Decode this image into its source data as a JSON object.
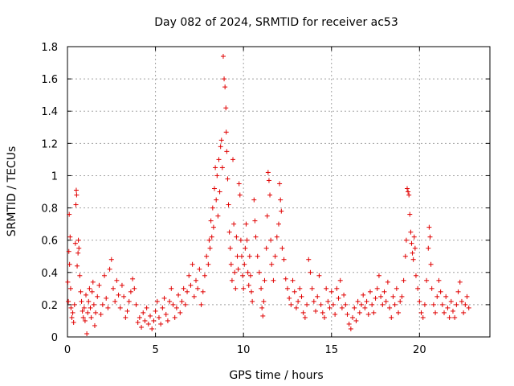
{
  "chart_data": {
    "type": "scatter",
    "title": "Day 082 of 2024, SRMTID for receiver ac53",
    "xlabel": "GPS time / hours",
    "ylabel": "SRMTID / TECUs",
    "xlim": [
      0,
      24
    ],
    "ylim": [
      0,
      1.8
    ],
    "xticks": [
      0,
      5,
      10,
      15,
      20
    ],
    "xtick_labels": [
      "0",
      "5",
      "10",
      "15",
      "20"
    ],
    "yticks": [
      0,
      0.2,
      0.4,
      0.6,
      0.8,
      1.0,
      1.2,
      1.4,
      1.6,
      1.8
    ],
    "ytick_labels": [
      "0",
      "0.2",
      "0.4",
      "0.6",
      "0.8",
      "1",
      "1.2",
      "1.4",
      "1.6",
      "1.8"
    ],
    "grid": true,
    "marker": "+",
    "color": "#e00000",
    "series": [
      {
        "name": "ac53",
        "points": [
          [
            0.02,
            0.34
          ],
          [
            0.05,
            0.22
          ],
          [
            0.08,
            0.53
          ],
          [
            0.1,
            0.76
          ],
          [
            0.12,
            0.45
          ],
          [
            0.15,
            0.62
          ],
          [
            0.18,
            0.3
          ],
          [
            0.2,
            0.18
          ],
          [
            0.25,
            0.12
          ],
          [
            0.3,
            0.15
          ],
          [
            0.35,
            0.09
          ],
          [
            0.4,
            0.2
          ],
          [
            0.45,
            0.58
          ],
          [
            0.48,
            0.82
          ],
          [
            0.5,
            0.91
          ],
          [
            0.52,
            0.88
          ],
          [
            0.55,
            0.44
          ],
          [
            0.6,
            0.52
          ],
          [
            0.62,
            0.6
          ],
          [
            0.65,
            0.55
          ],
          [
            0.7,
            0.38
          ],
          [
            0.75,
            0.28
          ],
          [
            0.8,
            0.22
          ],
          [
            0.85,
            0.16
          ],
          [
            0.9,
            0.12
          ],
          [
            0.95,
            0.18
          ],
          [
            1.0,
            0.1
          ],
          [
            1.05,
            0.26
          ],
          [
            1.1,
            0.02
          ],
          [
            1.15,
            0.15
          ],
          [
            1.2,
            0.22
          ],
          [
            1.25,
            0.3
          ],
          [
            1.3,
            0.18
          ],
          [
            1.35,
            0.12
          ],
          [
            1.4,
            0.28
          ],
          [
            1.45,
            0.34
          ],
          [
            1.5,
            0.2
          ],
          [
            1.55,
            0.07
          ],
          [
            1.6,
            0.15
          ],
          [
            1.7,
            0.25
          ],
          [
            1.8,
            0.32
          ],
          [
            1.9,
            0.14
          ],
          [
            2.0,
            0.2
          ],
          [
            2.1,
            0.38
          ],
          [
            2.2,
            0.24
          ],
          [
            2.3,
            0.18
          ],
          [
            2.4,
            0.42
          ],
          [
            2.5,
            0.48
          ],
          [
            2.6,
            0.3
          ],
          [
            2.7,
            0.22
          ],
          [
            2.8,
            0.35
          ],
          [
            2.9,
            0.26
          ],
          [
            3.0,
            0.18
          ],
          [
            3.1,
            0.32
          ],
          [
            3.2,
            0.25
          ],
          [
            3.3,
            0.12
          ],
          [
            3.4,
            0.16
          ],
          [
            3.5,
            0.22
          ],
          [
            3.6,
            0.28
          ],
          [
            3.7,
            0.36
          ],
          [
            3.8,
            0.3
          ],
          [
            3.9,
            0.2
          ],
          [
            4.0,
            0.09
          ],
          [
            4.1,
            0.12
          ],
          [
            4.2,
            0.06
          ],
          [
            4.3,
            0.15
          ],
          [
            4.4,
            0.1
          ],
          [
            4.5,
            0.18
          ],
          [
            4.6,
            0.08
          ],
          [
            4.7,
            0.13
          ],
          [
            4.8,
            0.05
          ],
          [
            4.9,
            0.1
          ],
          [
            5.0,
            0.16
          ],
          [
            5.1,
            0.22
          ],
          [
            5.2,
            0.12
          ],
          [
            5.3,
            0.08
          ],
          [
            5.4,
            0.18
          ],
          [
            5.5,
            0.24
          ],
          [
            5.6,
            0.14
          ],
          [
            5.7,
            0.1
          ],
          [
            5.8,
            0.22
          ],
          [
            5.9,
            0.3
          ],
          [
            6.0,
            0.2
          ],
          [
            6.1,
            0.12
          ],
          [
            6.2,
            0.18
          ],
          [
            6.3,
            0.26
          ],
          [
            6.4,
            0.15
          ],
          [
            6.5,
            0.22
          ],
          [
            6.6,
            0.3
          ],
          [
            6.7,
            0.2
          ],
          [
            6.8,
            0.28
          ],
          [
            6.9,
            0.38
          ],
          [
            7.0,
            0.32
          ],
          [
            7.1,
            0.45
          ],
          [
            7.2,
            0.25
          ],
          [
            7.3,
            0.35
          ],
          [
            7.4,
            0.3
          ],
          [
            7.5,
            0.42
          ],
          [
            7.6,
            0.2
          ],
          [
            7.7,
            0.28
          ],
          [
            7.8,
            0.38
          ],
          [
            7.9,
            0.5
          ],
          [
            8.0,
            0.45
          ],
          [
            8.05,
            0.6
          ],
          [
            8.1,
            0.55
          ],
          [
            8.15,
            0.72
          ],
          [
            8.2,
            0.62
          ],
          [
            8.25,
            0.8
          ],
          [
            8.3,
            0.68
          ],
          [
            8.35,
            0.92
          ],
          [
            8.4,
            1.05
          ],
          [
            8.45,
            0.85
          ],
          [
            8.5,
            1.0
          ],
          [
            8.55,
            0.75
          ],
          [
            8.6,
            1.1
          ],
          [
            8.65,
            0.9
          ],
          [
            8.7,
            1.18
          ],
          [
            8.75,
            1.22
          ],
          [
            8.8,
            1.05
          ],
          [
            8.85,
            1.74
          ],
          [
            8.9,
            1.6
          ],
          [
            8.95,
            1.55
          ],
          [
            9.0,
            1.42
          ],
          [
            9.02,
            1.27
          ],
          [
            9.05,
            1.15
          ],
          [
            9.1,
            0.98
          ],
          [
            9.15,
            0.82
          ],
          [
            9.2,
            0.65
          ],
          [
            9.25,
            0.55
          ],
          [
            9.3,
            0.45
          ],
          [
            9.35,
            0.35
          ],
          [
            9.4,
            1.1
          ],
          [
            9.45,
            0.7
          ],
          [
            9.5,
            0.4
          ],
          [
            9.55,
            0.3
          ],
          [
            9.6,
            0.62
          ],
          [
            9.65,
            0.5
          ],
          [
            9.7,
            0.42
          ],
          [
            9.75,
            0.95
          ],
          [
            9.8,
            0.88
          ],
          [
            9.85,
            0.6
          ],
          [
            9.9,
            0.5
          ],
          [
            9.95,
            0.38
          ],
          [
            10.0,
            0.3
          ],
          [
            10.05,
            0.45
          ],
          [
            10.1,
            0.55
          ],
          [
            10.15,
            0.7
          ],
          [
            10.2,
            0.6
          ],
          [
            10.25,
            0.4
          ],
          [
            10.3,
            0.32
          ],
          [
            10.35,
            0.5
          ],
          [
            10.4,
            0.38
          ],
          [
            10.45,
            0.28
          ],
          [
            10.5,
            0.22
          ],
          [
            10.6,
            0.85
          ],
          [
            10.65,
            0.72
          ],
          [
            10.7,
            0.62
          ],
          [
            10.8,
            0.5
          ],
          [
            10.9,
            0.4
          ],
          [
            11.0,
            0.3
          ],
          [
            11.05,
            0.18
          ],
          [
            11.1,
            0.13
          ],
          [
            11.15,
            0.22
          ],
          [
            11.2,
            0.35
          ],
          [
            11.3,
            0.55
          ],
          [
            11.35,
            0.75
          ],
          [
            11.4,
            1.02
          ],
          [
            11.45,
            0.97
          ],
          [
            11.5,
            0.88
          ],
          [
            11.55,
            0.6
          ],
          [
            11.6,
            0.45
          ],
          [
            11.7,
            0.35
          ],
          [
            11.8,
            0.5
          ],
          [
            11.9,
            0.62
          ],
          [
            12.0,
            0.7
          ],
          [
            12.05,
            0.95
          ],
          [
            12.1,
            0.85
          ],
          [
            12.15,
            0.78
          ],
          [
            12.2,
            0.55
          ],
          [
            12.3,
            0.48
          ],
          [
            12.4,
            0.36
          ],
          [
            12.5,
            0.3
          ],
          [
            12.6,
            0.24
          ],
          [
            12.7,
            0.2
          ],
          [
            12.8,
            0.35
          ],
          [
            12.9,
            0.28
          ],
          [
            13.0,
            0.18
          ],
          [
            13.1,
            0.22
          ],
          [
            13.2,
            0.3
          ],
          [
            13.3,
            0.25
          ],
          [
            13.4,
            0.15
          ],
          [
            13.5,
            0.12
          ],
          [
            13.6,
            0.2
          ],
          [
            13.7,
            0.48
          ],
          [
            13.8,
            0.4
          ],
          [
            13.9,
            0.3
          ],
          [
            14.0,
            0.22
          ],
          [
            14.1,
            0.16
          ],
          [
            14.2,
            0.25
          ],
          [
            14.3,
            0.38
          ],
          [
            14.4,
            0.2
          ],
          [
            14.5,
            0.15
          ],
          [
            14.6,
            0.12
          ],
          [
            14.7,
            0.3
          ],
          [
            14.8,
            0.22
          ],
          [
            14.9,
            0.18
          ],
          [
            15.0,
            0.28
          ],
          [
            15.1,
            0.2
          ],
          [
            15.2,
            0.14
          ],
          [
            15.3,
            0.3
          ],
          [
            15.4,
            0.24
          ],
          [
            15.5,
            0.35
          ],
          [
            15.6,
            0.18
          ],
          [
            15.7,
            0.26
          ],
          [
            15.8,
            0.2
          ],
          [
            15.9,
            0.14
          ],
          [
            16.0,
            0.08
          ],
          [
            16.1,
            0.05
          ],
          [
            16.2,
            0.12
          ],
          [
            16.3,
            0.18
          ],
          [
            16.4,
            0.1
          ],
          [
            16.5,
            0.22
          ],
          [
            16.6,
            0.15
          ],
          [
            16.7,
            0.2
          ],
          [
            16.8,
            0.26
          ],
          [
            16.9,
            0.18
          ],
          [
            17.0,
            0.22
          ],
          [
            17.1,
            0.14
          ],
          [
            17.2,
            0.28
          ],
          [
            17.3,
            0.2
          ],
          [
            17.4,
            0.15
          ],
          [
            17.5,
            0.24
          ],
          [
            17.6,
            0.3
          ],
          [
            17.7,
            0.38
          ],
          [
            17.8,
            0.25
          ],
          [
            17.9,
            0.2
          ],
          [
            18.0,
            0.28
          ],
          [
            18.1,
            0.22
          ],
          [
            18.2,
            0.34
          ],
          [
            18.3,
            0.18
          ],
          [
            18.4,
            0.12
          ],
          [
            18.5,
            0.25
          ],
          [
            18.6,
            0.2
          ],
          [
            18.7,
            0.3
          ],
          [
            18.8,
            0.15
          ],
          [
            18.9,
            0.22
          ],
          [
            19.0,
            0.25
          ],
          [
            19.1,
            0.35
          ],
          [
            19.2,
            0.5
          ],
          [
            19.25,
            0.6
          ],
          [
            19.3,
            0.92
          ],
          [
            19.35,
            0.9
          ],
          [
            19.4,
            0.88
          ],
          [
            19.45,
            0.76
          ],
          [
            19.5,
            0.65
          ],
          [
            19.55,
            0.58
          ],
          [
            19.6,
            0.52
          ],
          [
            19.65,
            0.48
          ],
          [
            19.7,
            0.62
          ],
          [
            19.75,
            0.55
          ],
          [
            19.8,
            0.38
          ],
          [
            19.9,
            0.3
          ],
          [
            20.0,
            0.22
          ],
          [
            20.1,
            0.15
          ],
          [
            20.2,
            0.12
          ],
          [
            20.3,
            0.2
          ],
          [
            20.4,
            0.35
          ],
          [
            20.5,
            0.55
          ],
          [
            20.55,
            0.68
          ],
          [
            20.6,
            0.62
          ],
          [
            20.65,
            0.45
          ],
          [
            20.7,
            0.3
          ],
          [
            20.8,
            0.2
          ],
          [
            20.9,
            0.15
          ],
          [
            21.0,
            0.25
          ],
          [
            21.1,
            0.35
          ],
          [
            21.2,
            0.28
          ],
          [
            21.3,
            0.2
          ],
          [
            21.4,
            0.15
          ],
          [
            21.5,
            0.25
          ],
          [
            21.6,
            0.18
          ],
          [
            21.7,
            0.12
          ],
          [
            21.8,
            0.22
          ],
          [
            21.9,
            0.16
          ],
          [
            22.0,
            0.12
          ],
          [
            22.1,
            0.2
          ],
          [
            22.2,
            0.28
          ],
          [
            22.3,
            0.34
          ],
          [
            22.4,
            0.22
          ],
          [
            22.5,
            0.15
          ],
          [
            22.6,
            0.2
          ],
          [
            22.7,
            0.25
          ],
          [
            22.8,
            0.18
          ]
        ]
      }
    ]
  }
}
